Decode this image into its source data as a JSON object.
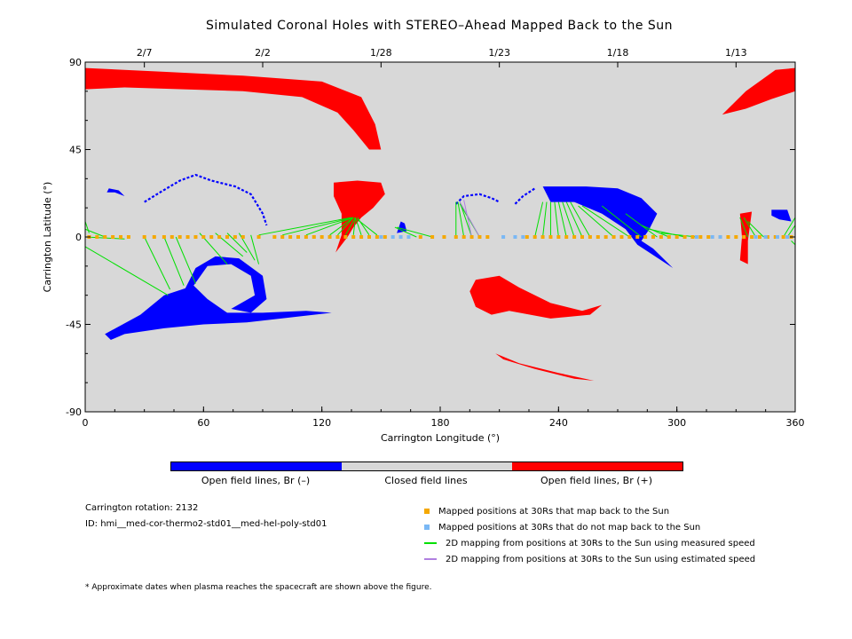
{
  "chart_data": {
    "type": "scatter",
    "title": "Simulated Coronal Holes with STEREO–Ahead Mapped Back to the Sun",
    "xlabel": "Carrington Longitude (°)",
    "ylabel": "Carrington Latitude (°)",
    "xlim": [
      0,
      360
    ],
    "ylim": [
      -90,
      90
    ],
    "xticks": [
      0,
      60,
      120,
      180,
      240,
      300,
      360
    ],
    "yticks": [
      -90,
      -45,
      0,
      45,
      90
    ],
    "top_axis": {
      "ticks": [
        {
          "label": "2/7",
          "lon": 30
        },
        {
          "label": "2/2",
          "lon": 90
        },
        {
          "label": "1/28",
          "lon": 150
        },
        {
          "label": "1/23",
          "lon": 210
        },
        {
          "label": "1/18",
          "lon": 270
        },
        {
          "label": "1/13",
          "lon": 330
        }
      ]
    },
    "colors": {
      "background": "#d8d8d8",
      "negative": "#0000ff",
      "positive": "#ff0000",
      "mapped": "#f5a800",
      "unmapped": "#7ab8f5",
      "measured_line": "#00e000",
      "estimated_line": "#b080e0"
    },
    "positive_holes": [
      [
        [
          0,
          87
        ],
        [
          40,
          85
        ],
        [
          80,
          83
        ],
        [
          120,
          80
        ],
        [
          140,
          72
        ],
        [
          147,
          58
        ],
        [
          150,
          45
        ],
        [
          144,
          45
        ],
        [
          136,
          55
        ],
        [
          128,
          64
        ],
        [
          110,
          72
        ],
        [
          80,
          75
        ],
        [
          50,
          76
        ],
        [
          20,
          77
        ],
        [
          0,
          76
        ]
      ],
      [
        [
          323,
          63
        ],
        [
          335,
          75
        ],
        [
          350,
          86
        ],
        [
          360,
          87
        ],
        [
          360,
          75
        ],
        [
          348,
          71
        ],
        [
          335,
          66
        ]
      ],
      [
        [
          126,
          28
        ],
        [
          138,
          29
        ],
        [
          150,
          28
        ],
        [
          152,
          22
        ],
        [
          146,
          15
        ],
        [
          140,
          10
        ],
        [
          136,
          5
        ],
        [
          133,
          0
        ],
        [
          127,
          -8
        ],
        [
          130,
          1
        ],
        [
          130,
          12
        ],
        [
          126,
          21
        ]
      ],
      [
        [
          198,
          -22
        ],
        [
          210,
          -20
        ],
        [
          220,
          -26
        ],
        [
          236,
          -34
        ],
        [
          252,
          -38
        ],
        [
          262,
          -35
        ],
        [
          256,
          -40
        ],
        [
          236,
          -42
        ],
        [
          215,
          -38
        ],
        [
          206,
          -40
        ],
        [
          198,
          -36
        ],
        [
          195,
          -28
        ]
      ],
      [
        [
          208,
          -60
        ],
        [
          220,
          -65
        ],
        [
          240,
          -70
        ],
        [
          258,
          -74
        ],
        [
          248,
          -73
        ],
        [
          228,
          -68
        ],
        [
          212,
          -63
        ]
      ],
      [
        [
          332,
          12
        ],
        [
          338,
          13
        ],
        [
          336,
          -2
        ],
        [
          336,
          -14
        ],
        [
          332,
          -12
        ],
        [
          333,
          0
        ]
      ]
    ],
    "negative_holes": [
      [
        [
          10,
          -50
        ],
        [
          28,
          -40
        ],
        [
          40,
          -30
        ],
        [
          55,
          -25
        ],
        [
          62,
          -32
        ],
        [
          72,
          -39
        ],
        [
          90,
          -39
        ],
        [
          112,
          -38
        ],
        [
          125,
          -39
        ],
        [
          82,
          -44
        ],
        [
          60,
          -45
        ],
        [
          40,
          -47
        ],
        [
          20,
          -50
        ],
        [
          13,
          -53
        ]
      ],
      [
        [
          50,
          -28
        ],
        [
          56,
          -16
        ],
        [
          66,
          -10
        ],
        [
          78,
          -11
        ],
        [
          90,
          -20
        ],
        [
          92,
          -32
        ],
        [
          84,
          -39
        ],
        [
          74,
          -37
        ],
        [
          86,
          -30
        ],
        [
          84,
          -20
        ],
        [
          74,
          -14
        ],
        [
          62,
          -15
        ],
        [
          55,
          -25
        ]
      ],
      [
        [
          12,
          25
        ],
        [
          17,
          24
        ],
        [
          20,
          21
        ],
        [
          15,
          23
        ],
        [
          11,
          23
        ]
      ],
      [
        [
          232,
          26
        ],
        [
          254,
          26
        ],
        [
          270,
          25
        ],
        [
          282,
          20
        ],
        [
          290,
          12
        ],
        [
          286,
          4
        ],
        [
          282,
          -2
        ],
        [
          288,
          -6
        ],
        [
          296,
          -14
        ],
        [
          298,
          -16
        ],
        [
          292,
          -12
        ],
        [
          280,
          -4
        ],
        [
          274,
          4
        ],
        [
          262,
          12
        ],
        [
          248,
          18
        ],
        [
          236,
          18
        ]
      ],
      [
        [
          348,
          14
        ],
        [
          356,
          14
        ],
        [
          358,
          8
        ],
        [
          352,
          9
        ],
        [
          348,
          11
        ]
      ],
      [
        [
          160,
          8
        ],
        [
          158,
          2
        ],
        [
          163,
          3
        ],
        [
          162,
          7
        ]
      ]
    ],
    "negative_arcs": [
      [
        [
          30,
          18
        ],
        [
          38,
          23
        ],
        [
          48,
          29
        ],
        [
          56,
          32
        ],
        [
          64,
          29
        ],
        [
          76,
          26
        ],
        [
          84,
          22
        ],
        [
          90,
          12
        ],
        [
          92,
          6
        ]
      ],
      [
        [
          188,
          17
        ],
        [
          192,
          21
        ],
        [
          200,
          22
        ],
        [
          206,
          20
        ],
        [
          210,
          18
        ]
      ],
      [
        [
          218,
          17
        ],
        [
          222,
          21
        ],
        [
          228,
          25
        ]
      ]
    ],
    "mapped_points_lon": [
      2,
      6,
      10,
      14,
      18,
      22,
      30,
      35,
      40,
      44,
      48,
      52,
      56,
      60,
      64,
      68,
      72,
      76,
      80,
      88,
      96,
      100,
      104,
      108,
      112,
      116,
      120,
      124,
      128,
      132,
      136,
      140,
      144,
      148,
      152,
      170,
      176,
      182,
      188,
      192,
      196,
      200,
      204,
      224,
      228,
      232,
      236,
      240,
      244,
      248,
      252,
      256,
      260,
      264,
      268,
      272,
      276,
      280,
      284,
      288,
      292,
      296,
      300,
      304,
      308,
      312,
      316,
      322,
      326,
      330,
      334,
      338,
      342,
      346,
      350,
      354,
      358
    ],
    "unmapped_points_lon": [
      150,
      156,
      160,
      164,
      212,
      218,
      222,
      310,
      318,
      322,
      340,
      345,
      351,
      356
    ],
    "measured_lines": [
      [
        [
          0,
          8
        ],
        [
          2,
          2
        ]
      ],
      [
        [
          0,
          4
        ],
        [
          10,
          0
        ]
      ],
      [
        [
          0,
          0
        ],
        [
          20,
          -1
        ]
      ],
      [
        [
          0,
          -5
        ],
        [
          42,
          -30
        ]
      ],
      [
        [
          30,
          0
        ],
        [
          43,
          -27
        ]
      ],
      [
        [
          40,
          0
        ],
        [
          50,
          -25
        ]
      ],
      [
        [
          46,
          0
        ],
        [
          56,
          -24
        ]
      ],
      [
        [
          58,
          2
        ],
        [
          72,
          -14
        ]
      ],
      [
        [
          66,
          2
        ],
        [
          80,
          -10
        ]
      ],
      [
        [
          72,
          2
        ],
        [
          82,
          -8
        ]
      ],
      [
        [
          78,
          2
        ],
        [
          86,
          -12
        ]
      ],
      [
        [
          84,
          1
        ],
        [
          88,
          -14
        ]
      ],
      [
        [
          88,
          1
        ],
        [
          135,
          10
        ]
      ],
      [
        [
          100,
          1
        ],
        [
          136,
          10
        ]
      ],
      [
        [
          112,
          1
        ],
        [
          136,
          10
        ]
      ],
      [
        [
          124,
          1
        ],
        [
          136,
          10
        ]
      ],
      [
        [
          128,
          1
        ],
        [
          136,
          10
        ]
      ],
      [
        [
          132,
          1
        ],
        [
          137,
          10
        ]
      ],
      [
        [
          136,
          1
        ],
        [
          137,
          10
        ]
      ],
      [
        [
          140,
          1
        ],
        [
          137,
          10
        ]
      ],
      [
        [
          144,
          1
        ],
        [
          138,
          10
        ]
      ],
      [
        [
          148,
          1
        ],
        [
          138,
          9
        ]
      ],
      [
        [
          168,
          0
        ],
        [
          157,
          5
        ]
      ],
      [
        [
          176,
          0
        ],
        [
          158,
          5
        ]
      ],
      [
        [
          188,
          0
        ],
        [
          188,
          18
        ]
      ],
      [
        [
          192,
          0
        ],
        [
          189,
          18
        ]
      ],
      [
        [
          196,
          0
        ],
        [
          190,
          18
        ]
      ],
      [
        [
          200,
          0
        ],
        [
          190,
          17
        ]
      ],
      [
        [
          228,
          0
        ],
        [
          232,
          18
        ]
      ],
      [
        [
          232,
          0
        ],
        [
          234,
          18
        ]
      ],
      [
        [
          236,
          0
        ],
        [
          236,
          18
        ]
      ],
      [
        [
          240,
          0
        ],
        [
          238,
          18
        ]
      ],
      [
        [
          244,
          0
        ],
        [
          240,
          18
        ]
      ],
      [
        [
          248,
          0
        ],
        [
          242,
          18
        ]
      ],
      [
        [
          252,
          0
        ],
        [
          244,
          18
        ]
      ],
      [
        [
          256,
          0
        ],
        [
          246,
          18
        ]
      ],
      [
        [
          268,
          0
        ],
        [
          250,
          16
        ]
      ],
      [
        [
          276,
          0
        ],
        [
          252,
          16
        ]
      ],
      [
        [
          282,
          0
        ],
        [
          262,
          16
        ]
      ],
      [
        [
          290,
          0
        ],
        [
          274,
          12
        ]
      ],
      [
        [
          296,
          0
        ],
        [
          282,
          6
        ]
      ],
      [
        [
          304,
          0
        ],
        [
          286,
          4
        ]
      ],
      [
        [
          310,
          0
        ],
        [
          292,
          2
        ]
      ],
      [
        [
          336,
          0
        ],
        [
          332,
          10
        ]
      ],
      [
        [
          340,
          0
        ],
        [
          334,
          10
        ]
      ],
      [
        [
          344,
          0
        ],
        [
          336,
          8
        ]
      ],
      [
        [
          354,
          0
        ],
        [
          360,
          10
        ]
      ],
      [
        [
          356,
          0
        ],
        [
          360,
          6
        ]
      ],
      [
        [
          358,
          -2
        ],
        [
          360,
          -4
        ]
      ]
    ],
    "estimated_lines": [
      [
        [
          200,
          0
        ],
        [
          190,
          18
        ]
      ],
      [
        [
          196,
          0
        ],
        [
          192,
          19
        ]
      ]
    ]
  },
  "colorbar": {
    "segments": [
      {
        "color": "#0000ff",
        "label": "Open field lines, Br (–)"
      },
      {
        "color": "#d8d8d8",
        "label": "Closed field lines"
      },
      {
        "color": "#ff0000",
        "label": "Open field lines, Br (+)"
      }
    ]
  },
  "info": {
    "rotation": "Carrington rotation: 2132",
    "id": "ID: hmi__med-cor-thermo2-std01__med-hel-poly-std01"
  },
  "legend": [
    {
      "kind": "square",
      "color": "#f5a800",
      "label": "Mapped positions at 30Rs that map back to the Sun"
    },
    {
      "kind": "square",
      "color": "#7ab8f5",
      "label": "Mapped positions at 30Rs that do not map back to the Sun"
    },
    {
      "kind": "line",
      "color": "#00e000",
      "label": "2D mapping from positions at 30Rs to the Sun using measured speed"
    },
    {
      "kind": "line",
      "color": "#b080e0",
      "label": "2D mapping from positions at 30Rs to the Sun using estimated speed"
    }
  ],
  "footnote": "* Approximate dates when plasma reaches the spacecraft are shown above the figure."
}
